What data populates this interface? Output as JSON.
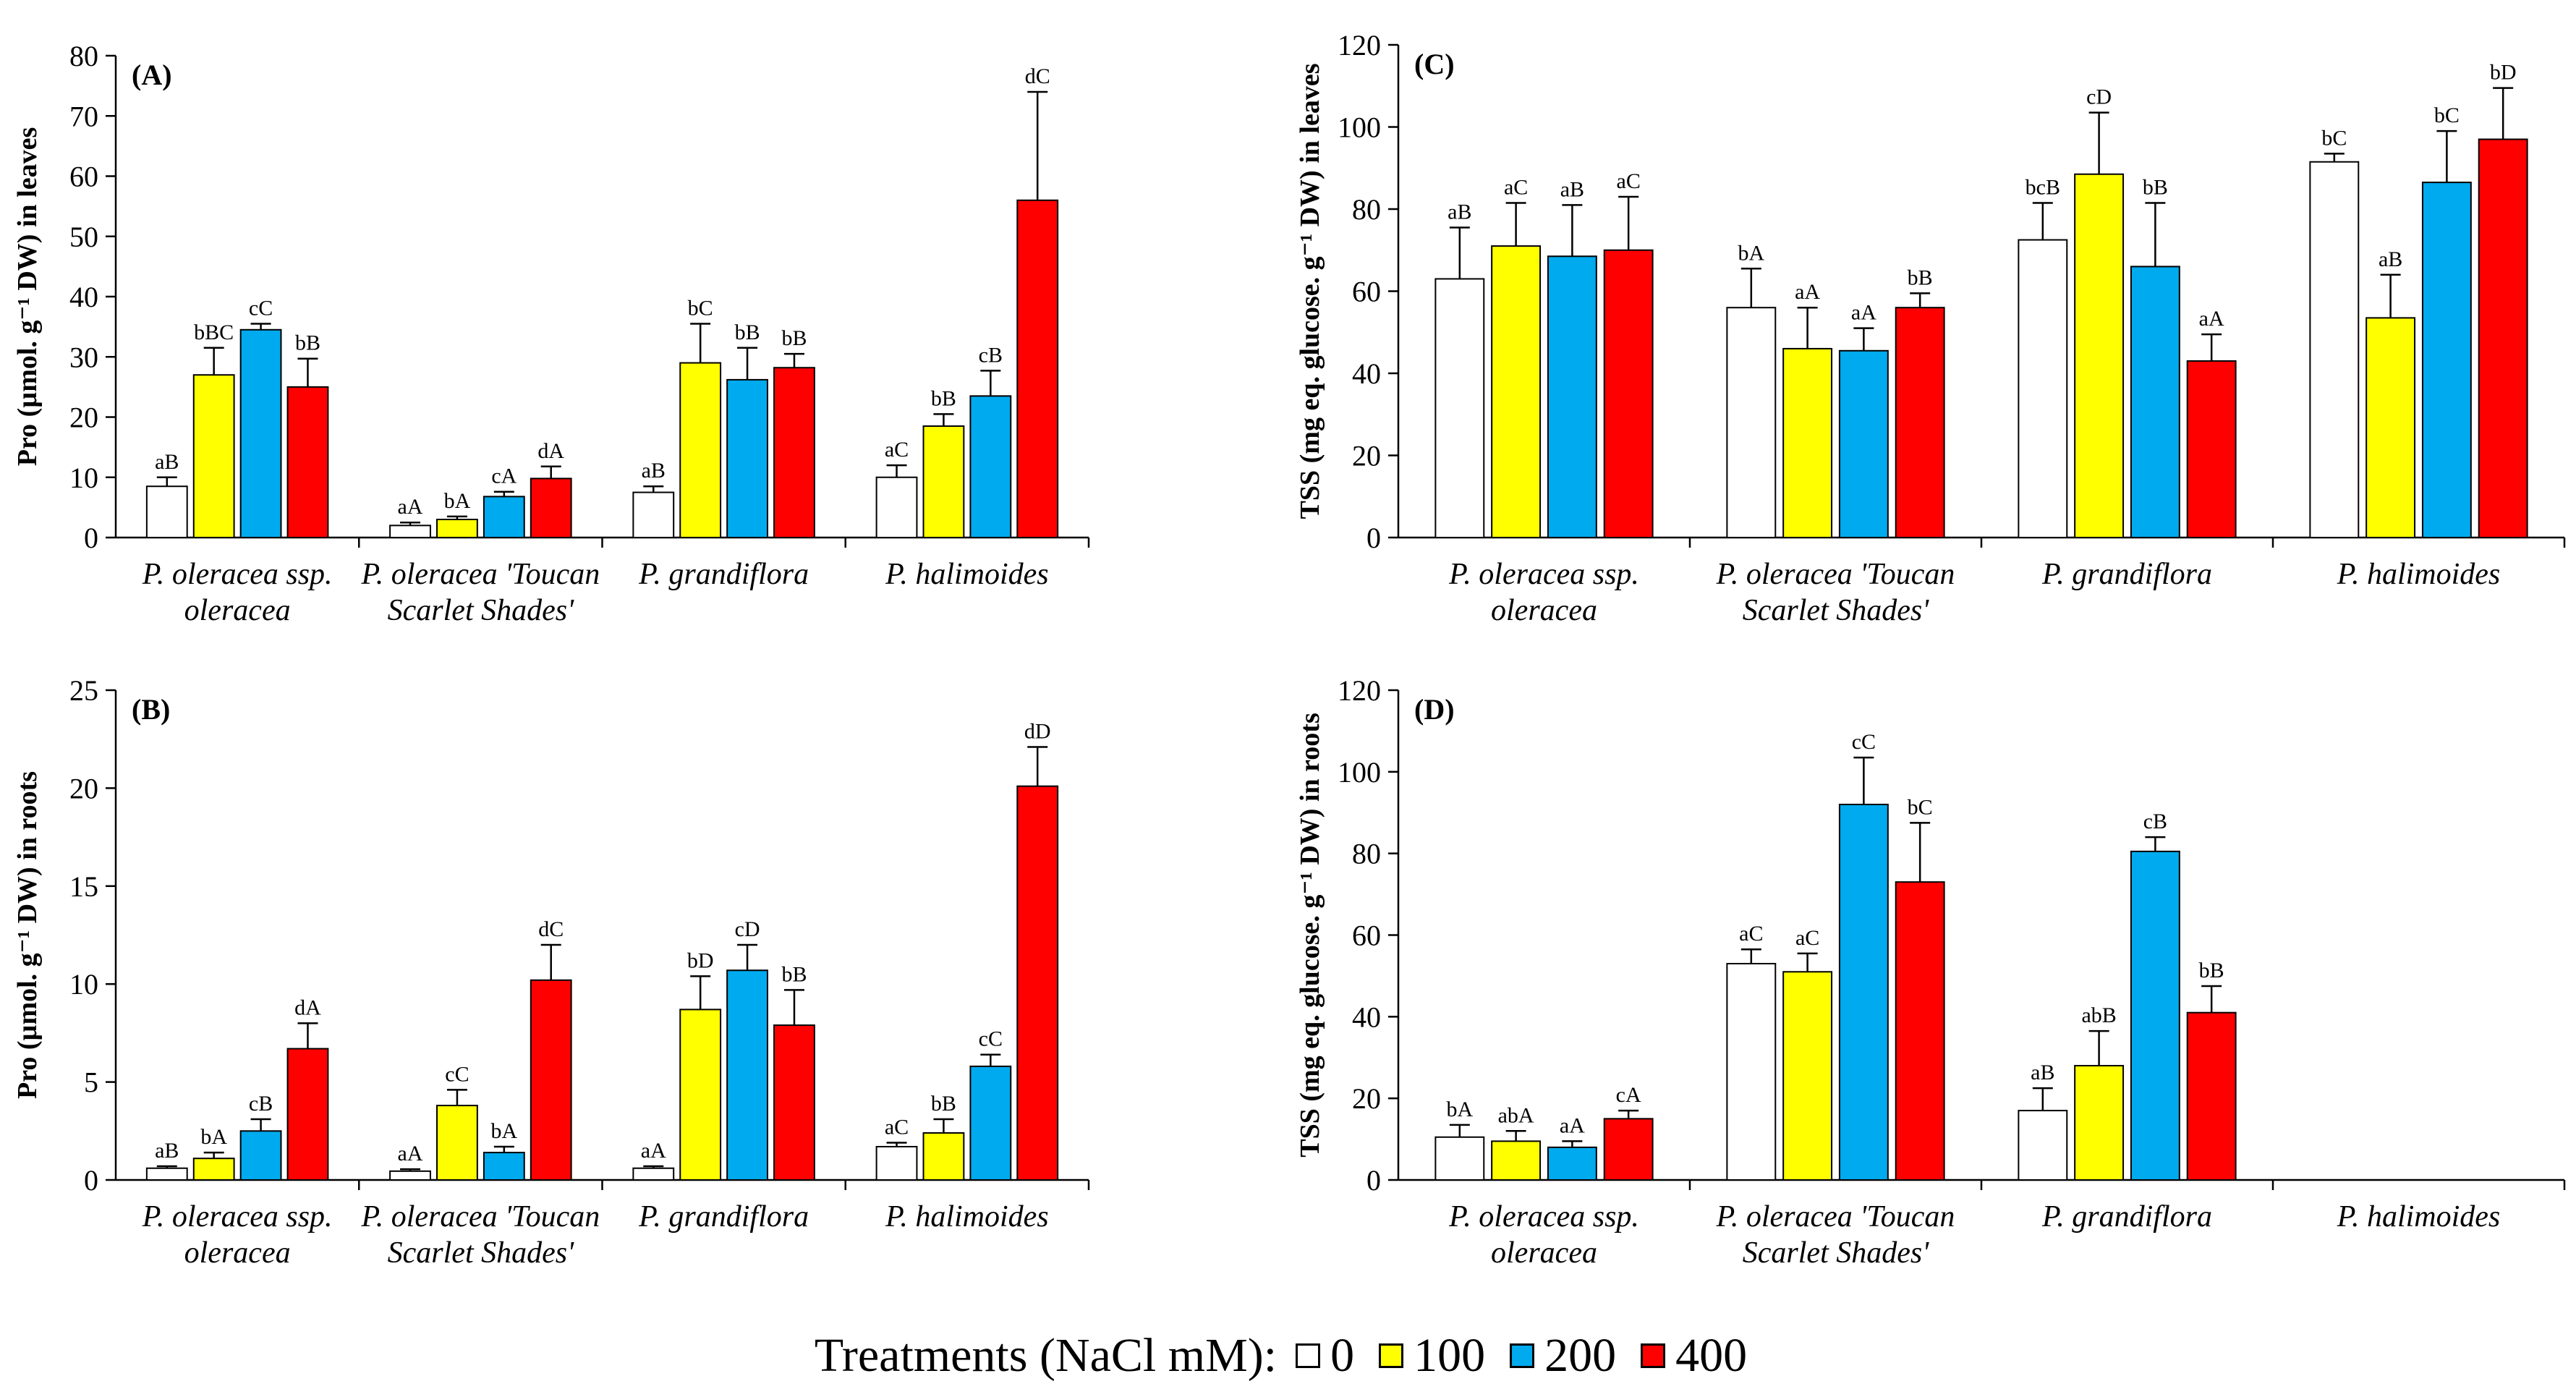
{
  "legend": {
    "title": "Treatments (NaCl mM):",
    "items": [
      {
        "label": "0",
        "color": "#ffffff"
      },
      {
        "label": "100",
        "color": "#ffff00"
      },
      {
        "label": "200",
        "color": "#00aaee"
      },
      {
        "label": "400",
        "color": "#ff0000"
      }
    ]
  },
  "chart_data": [
    {
      "type": "bar",
      "panel_label": "(A)",
      "title": "",
      "xlabel": "",
      "ylabel": "Pro (µmol. g⁻¹ DW) in leaves",
      "ylim": [
        0,
        80
      ],
      "yticks": [
        0,
        10,
        20,
        30,
        40,
        50,
        60,
        70,
        80
      ],
      "categories": [
        [
          "P. oleracea ssp.",
          "oleracea"
        ],
        [
          "P. oleracea 'Toucan",
          "Scarlet Shades'"
        ],
        [
          "P. grandiflora"
        ],
        [
          "P. halimoides"
        ]
      ],
      "series": [
        {
          "name": "0",
          "values": [
            8.5,
            2.0,
            7.5,
            10
          ],
          "errors": [
            1.5,
            0.5,
            1.0,
            2.0
          ],
          "labels": [
            "aB",
            "aA",
            "aB",
            "aC"
          ]
        },
        {
          "name": "100",
          "values": [
            27,
            3.0,
            29,
            18.5
          ],
          "errors": [
            4.5,
            0.5,
            6.5,
            2.0
          ],
          "labels": [
            "bBC",
            "bA",
            "bC",
            "bB"
          ]
        },
        {
          "name": "200",
          "values": [
            34.5,
            6.8,
            26.2,
            23.5
          ],
          "errors": [
            1.0,
            0.8,
            5.3,
            4.2
          ],
          "labels": [
            "cC",
            "cA",
            "bB",
            "cB"
          ]
        },
        {
          "name": "400",
          "values": [
            25,
            9.8,
            28.2,
            56
          ],
          "errors": [
            4.7,
            2.0,
            2.3,
            18
          ],
          "labels": [
            "bB",
            "dA",
            "bB",
            "dC"
          ]
        }
      ]
    },
    {
      "type": "bar",
      "panel_label": "(C)",
      "title": "",
      "xlabel": "",
      "ylabel": "TSS (mg eq. glucose. g⁻¹ DW) in leaves",
      "ylim": [
        0,
        120
      ],
      "yticks": [
        0,
        20,
        40,
        60,
        80,
        100,
        120
      ],
      "categories": [
        [
          "P. oleracea ssp.",
          "oleracea"
        ],
        [
          "P. oleracea 'Toucan",
          "Scarlet Shades'"
        ],
        [
          "P. grandiflora"
        ],
        [
          "P. halimoides"
        ]
      ],
      "series": [
        {
          "name": "0",
          "values": [
            63,
            56,
            72.5,
            91.5
          ],
          "errors": [
            12.5,
            9.5,
            9.0,
            2.0
          ],
          "labels": [
            "aB",
            "bA",
            "bcB",
            "bC"
          ]
        },
        {
          "name": "100",
          "values": [
            71,
            46,
            88.5,
            53.5
          ],
          "errors": [
            10.5,
            10.0,
            15.0,
            10.5
          ],
          "labels": [
            "aC",
            "aA",
            "cD",
            "aB"
          ]
        },
        {
          "name": "200",
          "values": [
            68.5,
            45.5,
            66,
            86.5
          ],
          "errors": [
            12.5,
            5.5,
            15.5,
            12.5
          ],
          "labels": [
            "aB",
            "aA",
            "bB",
            "bC"
          ]
        },
        {
          "name": "400",
          "values": [
            70,
            56,
            43,
            97
          ],
          "errors": [
            13,
            3.5,
            6.5,
            12.5
          ],
          "labels": [
            "aC",
            "bB",
            "aA",
            "bD"
          ]
        }
      ]
    },
    {
      "type": "bar",
      "panel_label": "(B)",
      "title": "",
      "xlabel": "",
      "ylabel": "Pro (µmol. g⁻¹ DW) in roots",
      "ylim": [
        0,
        25
      ],
      "yticks": [
        0,
        5,
        10,
        15,
        20,
        25
      ],
      "categories": [
        [
          "P. oleracea ssp.",
          "oleracea"
        ],
        [
          "P. oleracea 'Toucan",
          "Scarlet Shades'"
        ],
        [
          "P. grandiflora"
        ],
        [
          "P. halimoides"
        ]
      ],
      "series": [
        {
          "name": "0",
          "values": [
            0.6,
            0.45,
            0.6,
            1.7
          ],
          "errors": [
            0.1,
            0.1,
            0.1,
            0.2
          ],
          "labels": [
            "aB",
            "aA",
            "aA",
            "aC"
          ]
        },
        {
          "name": "100",
          "values": [
            1.1,
            3.8,
            8.7,
            2.4
          ],
          "errors": [
            0.3,
            0.8,
            1.7,
            0.7
          ],
          "labels": [
            "bA",
            "cC",
            "bD",
            "bB"
          ]
        },
        {
          "name": "200",
          "values": [
            2.5,
            1.4,
            10.7,
            5.8
          ],
          "errors": [
            0.6,
            0.3,
            1.3,
            0.6
          ],
          "labels": [
            "cB",
            "bA",
            "cD",
            "cC"
          ]
        },
        {
          "name": "400",
          "values": [
            6.7,
            10.2,
            7.9,
            20.1
          ],
          "errors": [
            1.3,
            1.8,
            1.8,
            2.0
          ],
          "labels": [
            "dA",
            "dC",
            "bB",
            "dD"
          ]
        }
      ]
    },
    {
      "type": "bar",
      "panel_label": "(D)",
      "title": "",
      "xlabel": "",
      "ylabel": "TSS (mg eq. glucose. g⁻¹ DW) in roots",
      "ylim": [
        0,
        120
      ],
      "yticks": [
        0,
        20,
        40,
        60,
        80,
        100,
        120
      ],
      "categories": [
        [
          "P. oleracea ssp.",
          "oleracea"
        ],
        [
          "P. oleracea 'Toucan",
          "Scarlet Shades'"
        ],
        [
          "P. grandiflora"
        ],
        [
          "P. halimoides"
        ]
      ],
      "series": [
        {
          "name": "0",
          "values": [
            10.5,
            53,
            17,
            null
          ],
          "errors": [
            3.0,
            3.5,
            5.5,
            null
          ],
          "labels": [
            "bA",
            "aC",
            "aB",
            null
          ]
        },
        {
          "name": "100",
          "values": [
            9.5,
            51,
            28,
            null
          ],
          "errors": [
            2.5,
            4.5,
            8.5,
            null
          ],
          "labels": [
            "abA",
            "aC",
            "abB",
            null
          ]
        },
        {
          "name": "200",
          "values": [
            8,
            92,
            80.5,
            null
          ],
          "errors": [
            1.5,
            11.5,
            3.5,
            null
          ],
          "labels": [
            "aA",
            "cC",
            "cB",
            null
          ]
        },
        {
          "name": "400",
          "values": [
            15,
            73,
            41,
            null
          ],
          "errors": [
            2.0,
            14.5,
            6.5,
            null
          ],
          "labels": [
            "cA",
            "bC",
            "bB",
            null
          ]
        }
      ]
    }
  ]
}
